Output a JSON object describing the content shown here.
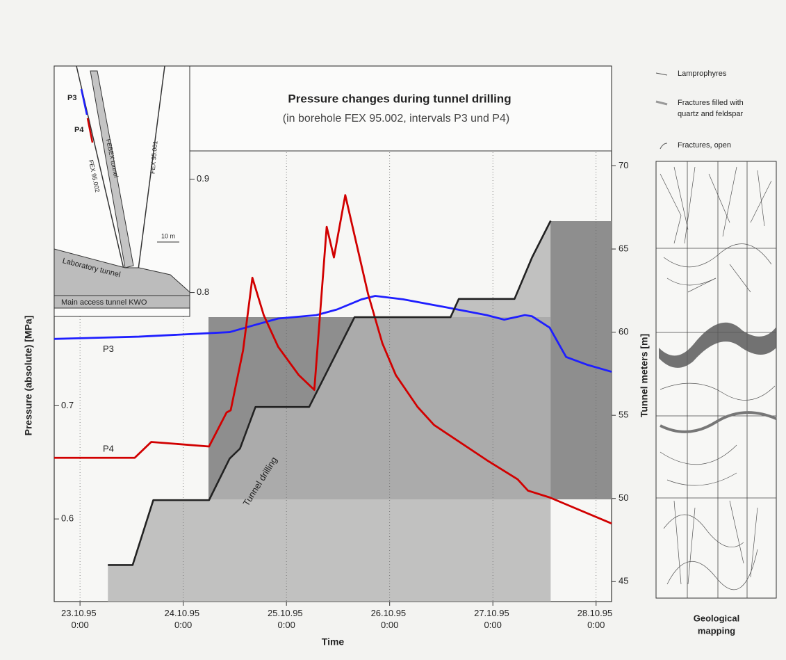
{
  "chart_data": {
    "type": "line",
    "title": "Pressure changes during tunnel drilling",
    "subtitle": "(in borehole FEX 95.002, intervals P3 und P4)",
    "x_label": "Time",
    "y_label": "Pressure (absolute) [MPa]",
    "y2_label": "Tunnel meters [m]",
    "xlim": [
      -0.25,
      5.15
    ],
    "xticks": [
      {
        "value": 0,
        "label": "23.10.95 0:00"
      },
      {
        "value": 1,
        "label": "24.10.95 0:00"
      },
      {
        "value": 2,
        "label": "25.10.95 0:00"
      },
      {
        "value": 3,
        "label": "26.10.95 0:00"
      },
      {
        "value": 4,
        "label": "27.10.95 0:00"
      },
      {
        "value": 5,
        "label": "28.10.95 0:00"
      }
    ],
    "ylim": [
      0.527,
      1.0
    ],
    "yticks": [
      0.6,
      0.7,
      0.8,
      0.9
    ],
    "y2lim": [
      43.8,
      76
    ],
    "y2ticks": [
      45,
      50,
      55,
      60,
      65,
      70
    ],
    "grid": true,
    "series": [
      {
        "name": "P3",
        "color": "#1f1fff",
        "x": [
          -0.25,
          0.57,
          1.45,
          1.72,
          1.92,
          2.29,
          2.49,
          2.73,
          2.86,
          3.13,
          3.6,
          3.94,
          4.11,
          4.21,
          4.31,
          4.38,
          4.55,
          4.71,
          4.92,
          5.15
        ],
        "values": [
          0.759,
          0.761,
          0.765,
          0.772,
          0.777,
          0.78,
          0.785,
          0.794,
          0.797,
          0.794,
          0.786,
          0.78,
          0.776,
          0.778,
          0.78,
          0.779,
          0.769,
          0.743,
          0.736,
          0.73
        ]
      },
      {
        "name": "P4",
        "color": "#d10000",
        "x": [
          -0.25,
          0.53,
          0.69,
          1.25,
          1.42,
          1.46,
          1.58,
          1.67,
          1.78,
          1.92,
          2.12,
          2.27,
          2.39,
          2.46,
          2.57,
          2.79,
          2.93,
          3.06,
          3.27,
          3.43,
          3.94,
          4.24,
          4.34,
          4.55,
          5.15
        ],
        "values": [
          0.654,
          0.654,
          0.668,
          0.664,
          0.694,
          0.696,
          0.749,
          0.813,
          0.78,
          0.752,
          0.727,
          0.714,
          0.858,
          0.831,
          0.886,
          0.799,
          0.755,
          0.727,
          0.699,
          0.683,
          0.652,
          0.635,
          0.625,
          0.619,
          0.596
        ]
      },
      {
        "name": "Tunnel drilling",
        "color": "#222222",
        "axis": "y2",
        "x": [
          0.27,
          0.51,
          0.71,
          1.25,
          1.45,
          1.55,
          1.7,
          2.22,
          2.66,
          3.59,
          3.67,
          4.21,
          4.38,
          4.56
        ],
        "values": [
          46.0,
          46.0,
          49.9,
          49.9,
          52.4,
          53.0,
          55.5,
          55.5,
          60.9,
          60.9,
          62.0,
          62.0,
          64.5,
          66.7
        ]
      }
    ]
  },
  "inset": {
    "labels": [
      "P3",
      "P4",
      "FEBEX tunnel",
      "FEX 95.002",
      "FEX 95.001",
      "10 m",
      "Laboratory tunnel",
      "Main access tunnel KWO"
    ]
  },
  "geology": {
    "legend": [
      "Lamprophyres",
      "Fractures filled with",
      "quartz and feldspar",
      "Fractures, open"
    ],
    "title": [
      "Geological",
      "mapping"
    ]
  }
}
